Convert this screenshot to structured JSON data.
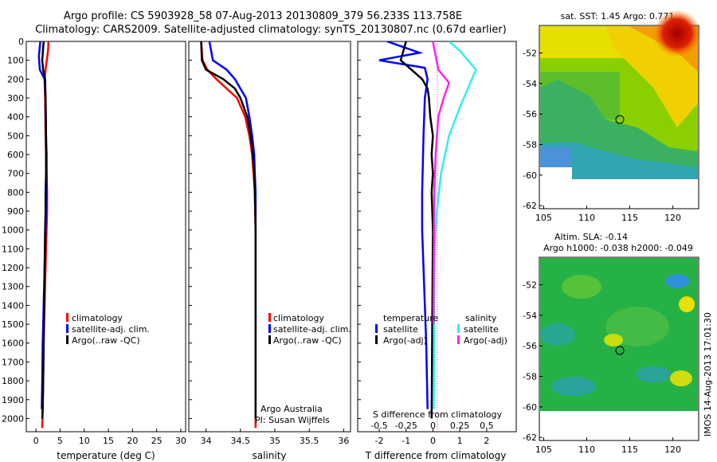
{
  "header": {
    "title_line1": "Argo profile: CS 5903928_58 07-Aug-2013 20130809_379 56.233S 113.758E",
    "title_line2": "Climatology: CARS2009. Satellite-adjusted climatology: synTS_20130807.nc (0.67d earlier)"
  },
  "colors": {
    "climatology": "#ff0000",
    "satellite_adj": "#0000ff",
    "argo": "#000000",
    "satellite_salinity": "#33eeee",
    "argo_adj_salinity": "#ff22ee"
  },
  "chart_data": [
    {
      "id": "temperature",
      "type": "line",
      "xlabel": "temperature (deg C)",
      "ylabel": "",
      "xlim": [
        -2,
        31
      ],
      "ylim": [
        2070,
        0
      ],
      "xticks": [
        "0",
        "5",
        "10",
        "15",
        "20",
        "25",
        "30"
      ],
      "yticks": [
        "0",
        "100",
        "200",
        "300",
        "400",
        "500",
        "600",
        "700",
        "800",
        "900",
        "1000",
        "1100",
        "1200",
        "1300",
        "1400",
        "1500",
        "1600",
        "1700",
        "1800",
        "1900",
        "2000"
      ],
      "legend": [
        "climatology",
        "satellite-adj. clim.",
        "Argo(..raw -QC)"
      ],
      "series": [
        {
          "name": "climatology",
          "x": [
            2.6,
            2.5,
            2.0,
            1.8,
            1.9,
            2.0,
            2.1,
            2.2,
            2.3,
            2.3,
            2.2,
            2.1,
            2.0,
            1.9,
            1.8,
            1.7,
            1.6,
            1.5,
            1.4,
            1.3
          ],
          "y": [
            0,
            50,
            150,
            200,
            300,
            500,
            600,
            700,
            800,
            900,
            1000,
            1100,
            1200,
            1300,
            1400,
            1500,
            1600,
            1800,
            1950,
            2050
          ]
        },
        {
          "name": "satellite-adj. clim.",
          "x": [
            0.9,
            0.6,
            0.8,
            1.8,
            2.0,
            2.1,
            2.2,
            2.2,
            2.2,
            2.1,
            2.0,
            1.9,
            1.8,
            1.7,
            1.6,
            1.5,
            1.4,
            1.3,
            1.2
          ],
          "y": [
            0,
            80,
            150,
            200,
            300,
            500,
            600,
            700,
            800,
            900,
            1000,
            1100,
            1200,
            1300,
            1400,
            1500,
            1600,
            1800,
            1950
          ]
        },
        {
          "name": "Argo(..raw -QC)",
          "x": [
            1.6,
            1.3,
            1.5,
            1.9,
            2.0,
            2.1,
            2.1,
            2.1,
            2.0,
            2.0,
            1.9,
            1.8,
            1.7,
            1.6,
            1.5,
            1.4,
            1.3
          ],
          "y": [
            0,
            100,
            150,
            200,
            300,
            500,
            600,
            700,
            800,
            900,
            1000,
            1200,
            1400,
            1600,
            1800,
            1950,
            2000
          ]
        }
      ]
    },
    {
      "id": "salinity",
      "type": "line",
      "xlabel": "salinity",
      "xlim": [
        33.75,
        36.1
      ],
      "ylim": [
        2070,
        0
      ],
      "xticks": [
        "34",
        "34.5",
        "35",
        "35.5",
        "36"
      ],
      "legend": [
        "climatology",
        "satellite-adj. clim.",
        "Argo(..raw -QC)"
      ],
      "annotation": [
        "Argo Australia",
        "PI: Susan Wijffels"
      ],
      "series": [
        {
          "name": "climatology",
          "x": [
            33.93,
            33.95,
            34.02,
            34.15,
            34.3,
            34.45,
            34.57,
            34.63,
            34.67,
            34.69,
            34.71,
            34.72,
            34.72,
            34.72,
            34.72
          ],
          "y": [
            0,
            100,
            150,
            200,
            250,
            300,
            400,
            500,
            600,
            700,
            800,
            1000,
            1200,
            1600,
            2050
          ]
        },
        {
          "name": "satellite-adj. clim.",
          "x": [
            34.05,
            34.1,
            34.3,
            34.42,
            34.5,
            34.58,
            34.63,
            34.67,
            34.7,
            34.71,
            34.72,
            34.72,
            34.72
          ],
          "y": [
            0,
            100,
            150,
            200,
            250,
            300,
            400,
            500,
            600,
            700,
            800,
            1000,
            1950
          ]
        },
        {
          "name": "Argo(..raw -QC)",
          "x": [
            33.93,
            33.94,
            34.0,
            34.25,
            34.42,
            34.5,
            34.6,
            34.65,
            34.68,
            34.7,
            34.71,
            34.72,
            34.72
          ],
          "y": [
            0,
            100,
            150,
            200,
            250,
            300,
            400,
            500,
            600,
            700,
            800,
            1000,
            2000
          ]
        }
      ]
    },
    {
      "id": "differences",
      "type": "line",
      "xlabel": "T difference from climatology",
      "top_xlabel": "S difference from climatology",
      "xlim": [
        -2.8,
        3.1
      ],
      "ylim": [
        2070,
        0
      ],
      "xticks": [
        "-2",
        "-1",
        "0",
        "1",
        "2"
      ],
      "top_xticks": [
        "-0.5",
        "-0.25",
        "0",
        "0.25",
        "0.5"
      ],
      "legend_titles": [
        "temperature",
        "salinity"
      ],
      "legend_left": [
        "satellite",
        "Argo(-adj)"
      ],
      "legend_right": [
        "satellite",
        "Argo(-adj)"
      ],
      "series": [
        {
          "name": "temperature satellite",
          "x": [
            -1.7,
            -0.5,
            -2.0,
            -0.3,
            -0.2,
            -0.3,
            -0.35,
            -0.4,
            -0.4,
            -0.35,
            -0.3,
            -0.25,
            -0.2
          ],
          "y": [
            0,
            60,
            100,
            140,
            200,
            300,
            500,
            800,
            1000,
            1200,
            1400,
            1600,
            1950
          ]
        },
        {
          "name": "temperature Argo(-adj)",
          "x": [
            -1.0,
            -1.2,
            -0.4,
            -0.2,
            -0.15,
            -0.1,
            0.0,
            -0.05,
            0.0,
            -0.05,
            0.0,
            -0.05
          ],
          "y": [
            0,
            100,
            200,
            250,
            300,
            400,
            500,
            600,
            700,
            800,
            1000,
            2000
          ]
        },
        {
          "name": "salinity satellite",
          "x": [
            0.6,
            1.0,
            1.6,
            1.3,
            1.0,
            0.6,
            0.3,
            0.15,
            0.05,
            0.03
          ],
          "y": [
            0,
            50,
            150,
            250,
            350,
            500,
            700,
            900,
            1100,
            1950
          ]
        },
        {
          "name": "salinity Argo(-adj)",
          "x": [
            0.0,
            0.2,
            0.6,
            0.4,
            0.2,
            0.1,
            0.05,
            0.02
          ],
          "y": [
            0,
            150,
            220,
            300,
            400,
            600,
            800,
            1500
          ]
        }
      ]
    },
    {
      "id": "sst_map",
      "type": "heatmap",
      "title": "sat. SST: 1.45 Argo: 0.771",
      "xlim": [
        104.5,
        123
      ],
      "ylim": [
        -62.2,
        -50.2
      ],
      "xticks": [
        "105",
        "110",
        "115",
        "120"
      ],
      "yticks": [
        "-52",
        "-54",
        "-56",
        "-58",
        "-60",
        "-62"
      ],
      "argo_position": {
        "lon": 113.758,
        "lat": -56.233
      }
    },
    {
      "id": "sla_map",
      "type": "heatmap",
      "title_line1": "Altim. SLA: -0.14",
      "title_line2": "Argo h1000: -0.038 h2000: -0.049",
      "xlim": [
        104.5,
        123
      ],
      "ylim": [
        -62.2,
        -50.2
      ],
      "xticks": [
        "105",
        "110",
        "115",
        "120"
      ],
      "yticks": [
        "-52",
        "-54",
        "-56",
        "-58",
        "-60",
        "-62"
      ],
      "argo_position": {
        "lon": 113.758,
        "lat": -56.233
      }
    }
  ],
  "footer": {
    "stamp": "IMOS 14-Aug-2013 17:01:30"
  }
}
